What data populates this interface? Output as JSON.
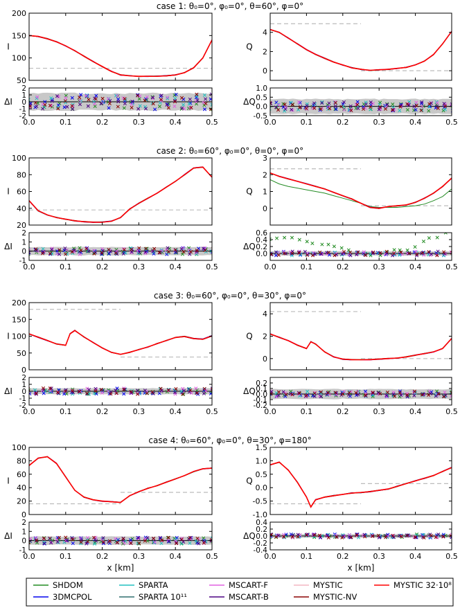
{
  "figure": {
    "xlabel": "x [km]",
    "colors": {
      "frame": "#000000",
      "band": "#c8c8c8",
      "dashed": "#bbbbbb",
      "zero": "#000000"
    }
  },
  "chart_data": [
    {
      "type": "line",
      "panel": "case1-I",
      "title": "case 1: θ₀=0°, φ₀=0°, θ=60°, φ=0°",
      "ylabel": "I",
      "resid_label": "ΔI",
      "xlim": [
        0,
        0.5
      ],
      "ylim": [
        50,
        200
      ],
      "yticks": [
        50,
        100,
        150,
        200
      ],
      "resid_ylim": [
        -2,
        2
      ],
      "resid_yticks": [
        -2,
        -1,
        0,
        1,
        2
      ],
      "x": [
        0,
        0.025,
        0.05,
        0.075,
        0.1,
        0.125,
        0.15,
        0.175,
        0.2,
        0.225,
        0.25,
        0.275,
        0.3,
        0.325,
        0.35,
        0.375,
        0.4,
        0.425,
        0.45,
        0.475,
        0.5
      ],
      "values": [
        150,
        148,
        143,
        136,
        127,
        116,
        104,
        92,
        81,
        70,
        62,
        60,
        59,
        59,
        59,
        60,
        62,
        67,
        78,
        100,
        140
      ],
      "dashed_levels": [
        77,
        77
      ],
      "band_halfwidth": 1.4,
      "resid_scatter": 1.1
    },
    {
      "type": "line",
      "panel": "case1-Q",
      "ylabel": "Q",
      "resid_label": "ΔQ",
      "xlim": [
        0,
        0.5
      ],
      "ylim": [
        -1,
        6
      ],
      "yticks": [
        0,
        2,
        4
      ],
      "resid_ylim": [
        -0.5,
        1.0
      ],
      "resid_yticks": [
        -0.5,
        0.0,
        0.5,
        1.0
      ],
      "x": [
        0,
        0.025,
        0.05,
        0.075,
        0.1,
        0.125,
        0.15,
        0.175,
        0.2,
        0.225,
        0.25,
        0.275,
        0.3,
        0.325,
        0.35,
        0.375,
        0.4,
        0.425,
        0.45,
        0.475,
        0.5
      ],
      "values": [
        4.3,
        4.0,
        3.4,
        2.8,
        2.2,
        1.7,
        1.3,
        0.9,
        0.6,
        0.3,
        0.15,
        0.05,
        0.1,
        0.15,
        0.25,
        0.35,
        0.6,
        1.0,
        1.7,
        2.8,
        4.1
      ],
      "dashed_levels": [
        4.9,
        0.0
      ],
      "band_halfwidth": 0.45,
      "resid_scatter": 0.25
    },
    {
      "type": "line",
      "panel": "case2-I",
      "title": "case 2: θ₀=60°, φ₀=0°, θ=0°, φ=0°",
      "ylabel": "I",
      "resid_label": "ΔI",
      "xlim": [
        0,
        0.5
      ],
      "ylim": [
        20,
        100
      ],
      "yticks": [
        20,
        40,
        60,
        80,
        100
      ],
      "resid_ylim": [
        -1,
        2
      ],
      "resid_yticks": [
        -1,
        0,
        1,
        2
      ],
      "x": [
        0,
        0.025,
        0.05,
        0.075,
        0.1,
        0.125,
        0.15,
        0.175,
        0.2,
        0.225,
        0.25,
        0.275,
        0.3,
        0.325,
        0.35,
        0.375,
        0.4,
        0.425,
        0.45,
        0.475,
        0.5
      ],
      "values": [
        49,
        37,
        32,
        29,
        27,
        25,
        24,
        23.5,
        23.5,
        24.5,
        29,
        39,
        46,
        52,
        58,
        65,
        72,
        80,
        88,
        89,
        77
      ],
      "dashed_levels": [
        38,
        38
      ],
      "band_halfwidth": 0.5,
      "resid_scatter": 0.35
    },
    {
      "type": "line",
      "panel": "case2-Q",
      "ylabel": "Q",
      "resid_label": "ΔQ",
      "xlim": [
        0,
        0.5
      ],
      "ylim": [
        -1,
        3
      ],
      "yticks": [
        0,
        1,
        2,
        3
      ],
      "resid_ylim": [
        -0.2,
        0.6
      ],
      "resid_yticks": [
        0.0,
        0.2,
        0.4,
        0.6
      ],
      "x": [
        0,
        0.025,
        0.05,
        0.075,
        0.1,
        0.125,
        0.15,
        0.175,
        0.2,
        0.225,
        0.25,
        0.275,
        0.3,
        0.325,
        0.35,
        0.375,
        0.4,
        0.425,
        0.45,
        0.475,
        0.5
      ],
      "values": [
        2.1,
        1.9,
        1.75,
        1.6,
        1.45,
        1.3,
        1.15,
        0.95,
        0.75,
        0.55,
        0.3,
        0.05,
        0.0,
        0.1,
        0.15,
        0.2,
        0.35,
        0.6,
        0.9,
        1.3,
        1.8
      ],
      "shdom_values": [
        1.7,
        1.45,
        1.3,
        1.2,
        1.1,
        1.0,
        0.9,
        0.75,
        0.6,
        0.45,
        0.3,
        0.1,
        0.05,
        0.05,
        0.05,
        0.1,
        0.15,
        0.25,
        0.45,
        0.7,
        1.15
      ],
      "dashed_levels": [
        2.35,
        0.15
      ],
      "band_halfwidth": 0.07,
      "resid_scatter": 0.06
    },
    {
      "type": "line",
      "panel": "case3-I",
      "title": "case 3: θ₀=60°, φ₀=0°, θ=30°, φ=0°",
      "ylabel": "I",
      "resid_label": "ΔI",
      "xlim": [
        0,
        0.5
      ],
      "ylim": [
        0,
        200
      ],
      "yticks": [
        0,
        50,
        100,
        150,
        200
      ],
      "resid_ylim": [
        -2,
        2
      ],
      "resid_yticks": [
        -2,
        -1,
        0,
        1,
        2
      ],
      "x": [
        0,
        0.025,
        0.05,
        0.075,
        0.1,
        0.112,
        0.125,
        0.15,
        0.175,
        0.2,
        0.225,
        0.25,
        0.275,
        0.3,
        0.325,
        0.35,
        0.375,
        0.4,
        0.425,
        0.45,
        0.475,
        0.5
      ],
      "values": [
        107,
        97,
        87,
        77,
        73,
        107,
        117,
        98,
        81,
        65,
        52,
        46,
        52,
        60,
        68,
        78,
        87,
        96,
        99,
        93,
        91,
        101
      ],
      "dashed_levels": [
        180,
        38
      ],
      "band_halfwidth": 0.5,
      "resid_scatter": 0.45
    },
    {
      "type": "line",
      "panel": "case3-Q",
      "ylabel": "Q",
      "resid_label": "ΔQ",
      "xlim": [
        0,
        0.5
      ],
      "ylim": [
        -1,
        5
      ],
      "yticks": [
        0,
        2,
        4
      ],
      "resid_ylim": [
        -0.2,
        0.3
      ],
      "resid_yticks": [
        -0.2,
        -0.1,
        0.0,
        0.1,
        0.2
      ],
      "x": [
        0,
        0.025,
        0.05,
        0.075,
        0.1,
        0.112,
        0.125,
        0.15,
        0.175,
        0.2,
        0.225,
        0.25,
        0.275,
        0.3,
        0.325,
        0.35,
        0.375,
        0.4,
        0.425,
        0.45,
        0.475,
        0.5
      ],
      "values": [
        2.2,
        1.9,
        1.6,
        1.2,
        0.9,
        1.5,
        1.3,
        0.6,
        0.15,
        -0.05,
        -0.1,
        -0.1,
        -0.1,
        -0.05,
        0.0,
        0.05,
        0.15,
        0.3,
        0.45,
        0.6,
        0.9,
        1.8
      ],
      "dashed_levels": [
        4.2,
        0.0
      ],
      "band_halfwidth": 0.1,
      "resid_scatter": 0.05
    },
    {
      "type": "line",
      "panel": "case4-I",
      "title": "case 4: θ₀=60°, φ₀=0°, θ=30°, φ=180°",
      "ylabel": "I",
      "resid_label": "ΔI",
      "xlim": [
        0,
        0.5
      ],
      "ylim": [
        0,
        100
      ],
      "yticks": [
        0,
        20,
        40,
        60,
        80,
        100
      ],
      "resid_ylim": [
        -1,
        2
      ],
      "resid_yticks": [
        -1,
        0,
        1,
        2
      ],
      "x": [
        0,
        0.025,
        0.05,
        0.075,
        0.1,
        0.125,
        0.15,
        0.175,
        0.2,
        0.225,
        0.25,
        0.275,
        0.3,
        0.325,
        0.35,
        0.375,
        0.4,
        0.425,
        0.45,
        0.475,
        0.5
      ],
      "values": [
        73,
        84,
        86,
        76,
        56,
        36,
        26,
        22,
        20,
        19,
        18,
        28,
        34,
        39,
        43,
        48,
        53,
        58,
        64,
        68,
        69
      ],
      "dashed_levels": [
        16,
        33
      ],
      "band_halfwidth": 0.5,
      "resid_scatter": 0.35
    },
    {
      "type": "line",
      "panel": "case4-Q",
      "ylabel": "Q",
      "resid_label": "ΔQ",
      "xlim": [
        0,
        0.5
      ],
      "ylim": [
        -1.0,
        1.5
      ],
      "yticks": [
        -1.0,
        -0.5,
        0.0,
        0.5,
        1.0,
        1.5
      ],
      "resid_ylim": [
        -0.4,
        0.4
      ],
      "resid_yticks": [
        -0.4,
        -0.2,
        0.0,
        0.2,
        0.4
      ],
      "x": [
        0,
        0.025,
        0.05,
        0.075,
        0.1,
        0.112,
        0.125,
        0.15,
        0.175,
        0.2,
        0.225,
        0.25,
        0.275,
        0.3,
        0.325,
        0.35,
        0.375,
        0.4,
        0.425,
        0.45,
        0.475,
        0.5
      ],
      "values": [
        0.85,
        0.95,
        0.65,
        0.2,
        -0.35,
        -0.72,
        -0.45,
        -0.35,
        -0.3,
        -0.25,
        -0.2,
        -0.18,
        -0.15,
        -0.1,
        -0.05,
        0.05,
        0.15,
        0.25,
        0.35,
        0.45,
        0.6,
        0.75
      ],
      "dashed_levels": [
        -0.6,
        0.15
      ],
      "band_halfwidth": 0.06,
      "resid_scatter": 0.05
    }
  ],
  "legend": {
    "items": [
      {
        "label": "SHDOM",
        "color": "#228B22"
      },
      {
        "label": "3DMCPOL",
        "color": "#0000ee"
      },
      {
        "label": "SPARTA",
        "color": "#20c0c0"
      },
      {
        "label": "SPARTA 10¹¹",
        "color": "#2f6f6f"
      },
      {
        "label": "MSCART-F",
        "color": "#e060e0"
      },
      {
        "label": "MSCART-B",
        "color": "#4b0082"
      },
      {
        "label": "MYSTIC",
        "color": "#f4b6c2"
      },
      {
        "label": "MYSTIC-NV",
        "color": "#8b0000"
      },
      {
        "label": "MYSTIC 32·10⁸",
        "color": "#ff0000"
      }
    ]
  }
}
